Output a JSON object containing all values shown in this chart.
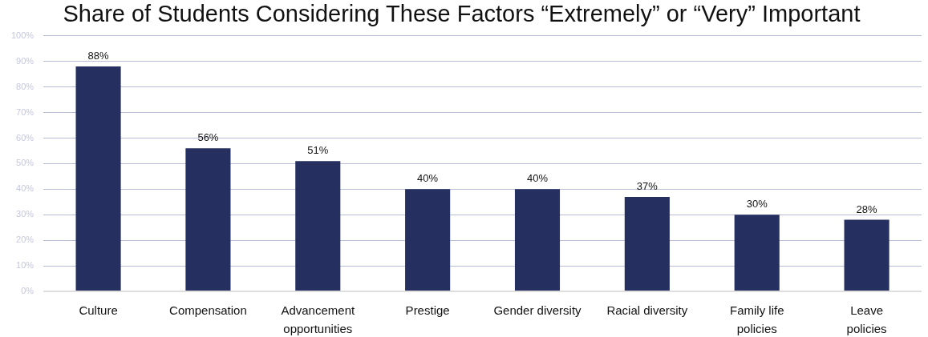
{
  "chart_data": {
    "type": "bar",
    "title": "Share of Students Considering These Factors “Extremely” or “Very” Important",
    "categories": [
      "Culture",
      "Compensation",
      "Advancement\nopportunities",
      "Prestige",
      "Gender diversity",
      "Racial diversity",
      "Family life\npolicies",
      "Leave\npolicies"
    ],
    "values": [
      88,
      56,
      51,
      40,
      40,
      37,
      30,
      28
    ],
    "value_labels": [
      "88%",
      "56%",
      "51%",
      "40%",
      "40%",
      "37%",
      "30%",
      "28%"
    ],
    "color": "#263060",
    "ylim": [
      0,
      100
    ],
    "yticks": [
      {
        "value": 0,
        "label": "0%"
      },
      {
        "value": 10,
        "label": "10%"
      },
      {
        "value": 20,
        "label": "20%"
      },
      {
        "value": 30,
        "label": "30%"
      },
      {
        "value": 40,
        "label": "40%"
      },
      {
        "value": 50,
        "label": "50%"
      },
      {
        "value": 60,
        "label": "60%"
      },
      {
        "value": 70,
        "label": "70%"
      },
      {
        "value": 80,
        "label": "80%"
      },
      {
        "value": 90,
        "label": "90%"
      },
      {
        "value": 100,
        "label": "100%"
      }
    ],
    "grid": "y"
  }
}
